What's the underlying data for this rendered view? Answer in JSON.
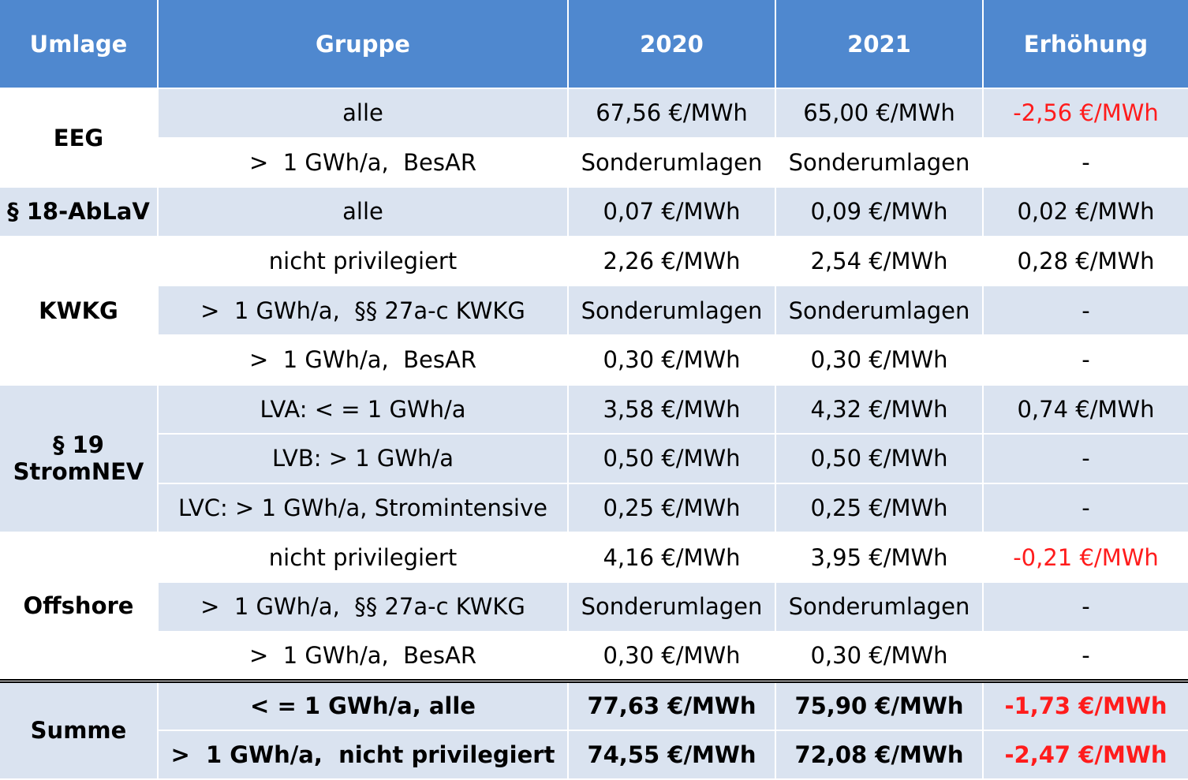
{
  "header": {
    "umlage": "Umlage",
    "gruppe": "Gruppe",
    "y2020": "2020",
    "y2021": "2021",
    "erhoehung": "Erhöhung"
  },
  "rows": [
    {
      "umlage": "EEG",
      "gruppe": "alle",
      "v2020": "67,56 €/MWh",
      "v2021": "65,00 €/MWh",
      "erhoehung": "-2,56 €/MWh"
    },
    {
      "gruppe": ">  1 GWh/a,  BesAR",
      "v2020": "Sonderumlagen",
      "v2021": "Sonderumlagen",
      "erhoehung": "-"
    },
    {
      "umlage": "§ 18-AbLaV",
      "gruppe": "alle",
      "v2020": "0,07 €/MWh",
      "v2021": "0,09 €/MWh",
      "erhoehung": "0,02 €/MWh"
    },
    {
      "umlage": "KWKG",
      "gruppe": "nicht privilegiert",
      "v2020": "2,26 €/MWh",
      "v2021": "2,54 €/MWh",
      "erhoehung": "0,28 €/MWh"
    },
    {
      "gruppe": ">  1 GWh/a,  §§ 27a-c KWKG",
      "v2020": "Sonderumlagen",
      "v2021": "Sonderumlagen",
      "erhoehung": "-"
    },
    {
      "gruppe": ">  1 GWh/a,  BesAR",
      "v2020": "0,30 €/MWh",
      "v2021": "0,30 €/MWh",
      "erhoehung": "-"
    },
    {
      "umlage": "§ 19\nStromNEV",
      "gruppe": "LVA: < = 1 GWh/a",
      "v2020": "3,58 €/MWh",
      "v2021": "4,32 €/MWh",
      "erhoehung": "0,74 €/MWh"
    },
    {
      "gruppe": "LVB: > 1 GWh/a",
      "v2020": "0,50 €/MWh",
      "v2021": "0,50 €/MWh",
      "erhoehung": "-"
    },
    {
      "gruppe": "LVC: > 1 GWh/a, Stromintensive",
      "v2020": "0,25 €/MWh",
      "v2021": "0,25 €/MWh",
      "erhoehung": "-"
    },
    {
      "umlage": "Offshore",
      "gruppe": "nicht privilegiert",
      "v2020": "4,16 €/MWh",
      "v2021": "3,95 €/MWh",
      "erhoehung": "-0,21 €/MWh"
    },
    {
      "gruppe": ">  1 GWh/a,  §§ 27a-c KWKG",
      "v2020": "Sonderumlagen",
      "v2021": "Sonderumlagen",
      "erhoehung": "-"
    },
    {
      "gruppe": ">  1 GWh/a,  BesAR",
      "v2020": "0,30 €/MWh",
      "v2021": "0,30 €/MWh",
      "erhoehung": "-"
    },
    {
      "umlage": "Summe",
      "gruppe": "< = 1 GWh/a, alle",
      "v2020": "77,63 €/MWh",
      "v2021": "75,90 €/MWh",
      "erhoehung": "-1,73 €/MWh"
    },
    {
      "gruppe": ">  1 GWh/a,  nicht privilegiert",
      "v2020": "74,55 €/MWh",
      "v2021": "72,08 €/MWh",
      "erhoehung": "-2,47 €/MWh"
    }
  ],
  "colors": {
    "header_bg": "#4f88cf",
    "shaded_row_bg": "#dae3f0",
    "negative_text": "#ff1c1c"
  }
}
